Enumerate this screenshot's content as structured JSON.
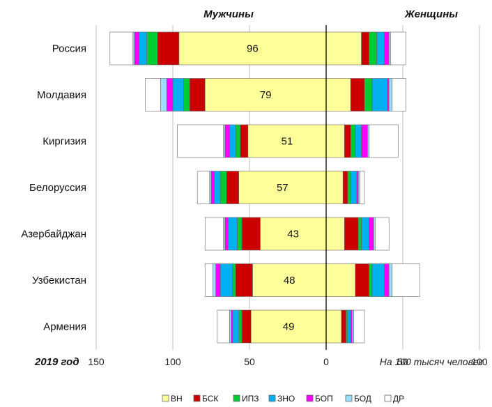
{
  "chart_data": {
    "type": "bar",
    "orientation": "horizontal-diverging-stacked",
    "header_left": "Мужчины",
    "header_right": "Женщины",
    "year_label": "2019 год",
    "unit_note": "На 100 тысяч человек",
    "xlim": [
      -100,
      100
    ],
    "tick_values": [
      -150,
      -100,
      -50,
      0,
      50,
      100
    ],
    "tick_labels": [
      "150",
      "100",
      "50",
      "0",
      "50",
      "100"
    ],
    "grid": true,
    "legend_position": "bottom",
    "colors": {
      "ВН": "#ffff99",
      "БСК": "#cc0000",
      "ИПЗ": "#00cc33",
      "ЗНО": "#00b0f0",
      "БОП": "#ff00ff",
      "БОД": "#99ddff",
      "ДР": "#ffffff"
    },
    "series_order": [
      "ВН",
      "БСК",
      "ИПЗ",
      "ЗНО",
      "БОП",
      "БОД",
      "ДР"
    ],
    "categories": [
      "Россия",
      "Молдавия",
      "Киргизия",
      "Белоруссия",
      "Азербайджан",
      "Узбекистан",
      "Армения"
    ],
    "center_labels": [
      "96",
      "79",
      "51",
      "57",
      "43",
      "48",
      "49"
    ],
    "men": [
      {
        "ВН": 96,
        "БСК": 14,
        "ИПЗ": 7,
        "ЗНО": 5,
        "БОП": 3,
        "БОД": 1,
        "ДР": 15
      },
      {
        "ВН": 79,
        "БСК": 10,
        "ИПЗ": 4,
        "ЗНО": 7,
        "БОП": 4,
        "БОД": 4,
        "ДР": 10
      },
      {
        "ВН": 51,
        "БСК": 5,
        "ИПЗ": 3,
        "ЗНО": 4,
        "БОП": 3,
        "БОД": 1,
        "ДР": 30
      },
      {
        "ВН": 57,
        "БСК": 8,
        "ИПЗ": 4,
        "ЗНО": 4,
        "БОП": 2,
        "БОД": 1,
        "ДР": 8
      },
      {
        "ВН": 43,
        "БСК": 12,
        "ИПЗ": 3,
        "ЗНО": 6,
        "БОП": 2,
        "БОД": 1,
        "ДР": 12
      },
      {
        "ВН": 48,
        "БСК": 11,
        "ИПЗ": 2,
        "ЗНО": 8,
        "БОП": 3,
        "БОД": 2,
        "ДР": 5
      },
      {
        "ВН": 49,
        "БСК": 6,
        "ИПЗ": 2,
        "ЗНО": 4,
        "БОП": 1,
        "БОД": 1,
        "ДР": 8
      }
    ],
    "women": [
      {
        "ВН": 23,
        "БСК": 5,
        "ИПЗ": 5,
        "ЗНО": 5,
        "БОП": 3,
        "БОД": 1,
        "ДР": 10
      },
      {
        "ВН": 16,
        "БСК": 9,
        "ИПЗ": 5,
        "ЗНО": 10,
        "БОП": 1,
        "БОД": 2,
        "ДР": 9
      },
      {
        "ВН": 12,
        "БСК": 4,
        "ИПЗ": 3,
        "ЗНО": 4,
        "БОП": 4,
        "БОД": 1,
        "ДР": 19
      },
      {
        "ВН": 11,
        "БСК": 3,
        "ИПЗ": 2,
        "ЗНО": 4,
        "БОП": 1,
        "БОД": 1,
        "ДР": 3
      },
      {
        "ВН": 12,
        "БСК": 9,
        "ИПЗ": 2,
        "ЗНО": 5,
        "БОП": 3,
        "БОД": 1,
        "ДР": 9
      },
      {
        "ВН": 19,
        "БСК": 9,
        "ИПЗ": 2,
        "ЗНО": 8,
        "БОП": 3,
        "БОД": 2,
        "ДР": 18
      },
      {
        "ВН": 10,
        "БСК": 3,
        "ИПЗ": 1,
        "ЗНО": 2,
        "БОП": 1,
        "БОД": 1,
        "ДР": 7
      }
    ]
  }
}
